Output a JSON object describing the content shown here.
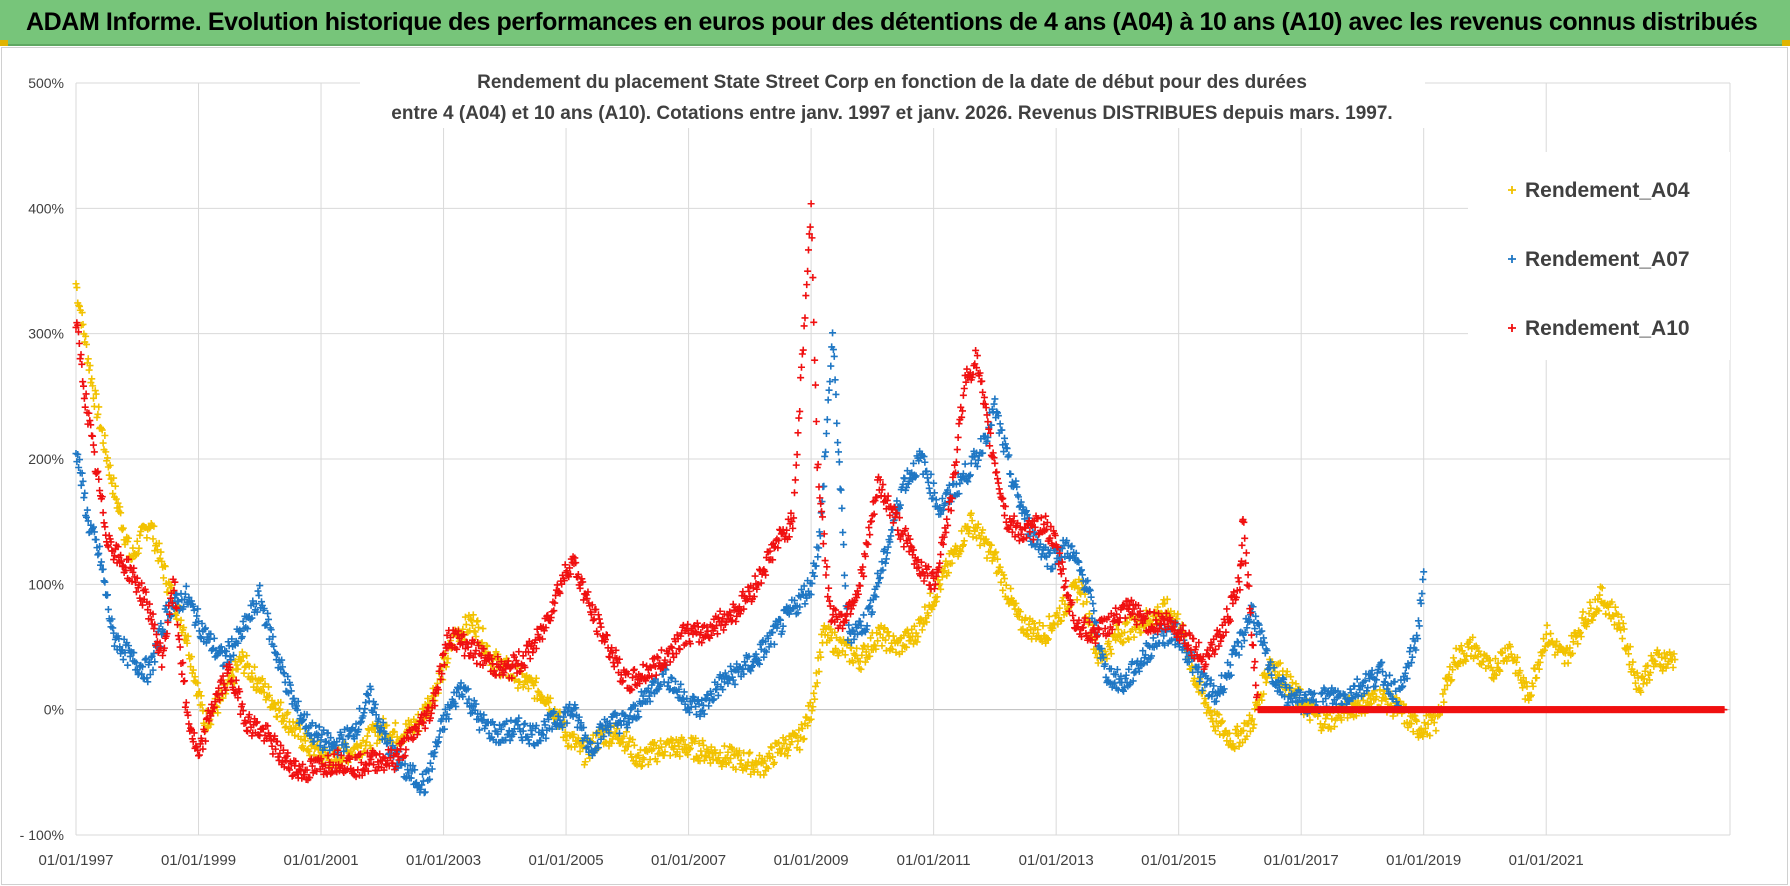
{
  "header": {
    "title": "ADAM Informe. Evolution historique des performances en euros pour des détentions de 4 ans (A04) à 10 ans (A10) avec les revenus connus distribués"
  },
  "colors": {
    "A04": "#f2c200",
    "A07": "#1f77c4",
    "A10": "#f01010",
    "banner": "#77c57a",
    "grid": "#d9d9d9"
  },
  "chart_data": {
    "type": "scatter",
    "title_line1": "Rendement du placement State Street Corp en fonction de la date de début pour des durées",
    "title_line2": "entre 4 (A04) et 10 ans (A10).  Cotations entre janv. 1997 et janv. 2026.  Revenus DISTRIBUES depuis mars. 1997.",
    "xlabel": "",
    "ylabel": "",
    "x_range": [
      1997.0,
      2024.0
    ],
    "ylim": [
      -100,
      500
    ],
    "y_ticks": [
      "- 100%",
      "0%",
      "100%",
      "200%",
      "300%",
      "400%",
      "500%"
    ],
    "y_tick_values": [
      -100,
      0,
      100,
      200,
      300,
      400,
      500
    ],
    "x_ticks": [
      "01/01/1997",
      "01/01/1999",
      "01/01/2001",
      "01/01/2003",
      "01/01/2005",
      "01/01/2007",
      "01/01/2009",
      "01/01/2011",
      "01/01/2013",
      "01/01/2015",
      "01/01/2017",
      "01/01/2019",
      "01/01/2021"
    ],
    "x_tick_values": [
      1997,
      1999,
      2001,
      2003,
      2005,
      2007,
      2009,
      2011,
      2013,
      2015,
      2017,
      2019,
      2021
    ],
    "legend": [
      "Rendement_A04",
      "Rendement_A07",
      "Rendement_A10"
    ],
    "legend_position": "top-right",
    "marker": "+",
    "series": [
      {
        "name": "Rendement_A04",
        "x": [
          1997.0,
          1997.3,
          1997.6,
          1997.9,
          1998.2,
          1998.5,
          1998.8,
          1999.1,
          1999.4,
          1999.7,
          2000.0,
          2000.4,
          2000.8,
          2001.2,
          2001.6,
          2002.0,
          2002.3,
          2002.6,
          2002.9,
          2003.2,
          2003.5,
          2003.8,
          2004.1,
          2004.4,
          2004.7,
          2005.0,
          2005.3,
          2005.6,
          2005.9,
          2006.2,
          2006.6,
          2007.0,
          2007.4,
          2007.8,
          2008.2,
          2008.5,
          2008.8,
          2009.0,
          2009.2,
          2009.5,
          2009.8,
          2010.1,
          2010.4,
          2010.7,
          2011.0,
          2011.3,
          2011.6,
          2012.0,
          2012.4,
          2012.8,
          2013.1,
          2013.4,
          2013.7,
          2014.0,
          2014.4,
          2014.8,
          2015.0,
          2015.3,
          2015.6,
          2015.9,
          2016.2,
          2016.5,
          2016.8,
          2017.1,
          2017.4,
          2017.7,
          2018.0,
          2018.3,
          2018.6,
          2018.9,
          2019.2,
          2019.5,
          2019.8,
          2020.1,
          2020.4,
          2020.7,
          2021.0,
          2021.3,
          2021.6,
          2021.9,
          2022.2,
          2022.5,
          2022.8,
          2023.1
        ],
        "y": [
          340,
          250,
          180,
          120,
          150,
          100,
          60,
          -10,
          10,
          40,
          20,
          -5,
          -30,
          -40,
          -30,
          -15,
          -20,
          -10,
          20,
          60,
          70,
          40,
          30,
          20,
          10,
          -20,
          -35,
          -20,
          -20,
          -40,
          -30,
          -30,
          -35,
          -40,
          -45,
          -30,
          -25,
          0,
          60,
          50,
          40,
          60,
          50,
          60,
          90,
          120,
          150,
          120,
          70,
          60,
          80,
          100,
          40,
          60,
          70,
          80,
          70,
          20,
          -10,
          -25,
          -10,
          40,
          20,
          0,
          -10,
          0,
          5,
          10,
          0,
          -15,
          -10,
          40,
          50,
          30,
          50,
          10,
          60,
          40,
          70,
          90,
          70,
          20,
          40,
          40
        ]
      },
      {
        "name": "Rendement_A07",
        "x": [
          1997.0,
          1997.2,
          1997.4,
          1997.6,
          1997.9,
          1998.2,
          1998.5,
          1998.8,
          1999.1,
          1999.4,
          1999.7,
          2000.0,
          2000.3,
          2000.6,
          2000.9,
          2001.2,
          2001.5,
          2001.8,
          2002.1,
          2002.4,
          2002.7,
          2003.0,
          2003.3,
          2003.6,
          2003.9,
          2004.2,
          2004.5,
          2004.8,
          2005.1,
          2005.4,
          2005.7,
          2006.0,
          2006.3,
          2006.6,
          2006.9,
          2007.2,
          2007.5,
          2007.8,
          2008.1,
          2008.4,
          2008.7,
          2009.0,
          2009.15,
          2009.35,
          2009.6,
          2009.9,
          2010.2,
          2010.5,
          2010.8,
          2011.1,
          2011.4,
          2011.7,
          2012.0,
          2012.3,
          2012.6,
          2012.9,
          2013.2,
          2013.5,
          2013.8,
          2014.1,
          2014.4,
          2014.7,
          2015.0,
          2015.3,
          2015.6,
          2015.9,
          2016.2,
          2016.5,
          2016.8,
          2017.1,
          2017.4,
          2017.7,
          2018.0,
          2018.3,
          2018.6,
          2018.9,
          2019.0
        ],
        "y": [
          210,
          150,
          120,
          60,
          40,
          30,
          80,
          90,
          60,
          40,
          60,
          90,
          40,
          0,
          -20,
          -30,
          -20,
          10,
          -30,
          -50,
          -60,
          -10,
          20,
          -10,
          -20,
          -15,
          -20,
          -10,
          0,
          -30,
          -10,
          -10,
          10,
          30,
          10,
          0,
          20,
          30,
          40,
          60,
          80,
          100,
          140,
          300,
          60,
          70,
          120,
          180,
          200,
          160,
          180,
          200,
          240,
          180,
          140,
          120,
          130,
          100,
          30,
          20,
          40,
          60,
          60,
          30,
          10,
          40,
          80,
          30,
          10,
          5,
          10,
          10,
          20,
          30,
          10,
          60,
          110
        ]
      },
      {
        "name": "Rendement_A10",
        "x": [
          1997.0,
          1997.15,
          1997.3,
          1997.5,
          1997.7,
          1997.9,
          1998.2,
          1998.4,
          1998.6,
          1998.8,
          1999.0,
          1999.2,
          1999.5,
          1999.8,
          2000.1,
          2000.4,
          2000.7,
          2001.0,
          2001.3,
          2001.6,
          2001.9,
          2002.2,
          2002.5,
          2002.8,
          2003.1,
          2003.4,
          2003.7,
          2004.0,
          2004.3,
          2004.6,
          2004.9,
          2005.1,
          2005.4,
          2005.7,
          2006.0,
          2006.3,
          2006.6,
          2006.9,
          2007.2,
          2007.5,
          2007.8,
          2008.1,
          2008.4,
          2008.7,
          2009.0,
          2009.1,
          2009.3,
          2009.5,
          2009.8,
          2010.1,
          2010.4,
          2010.7,
          2011.0,
          2011.3,
          2011.5,
          2011.7,
          2011.9,
          2012.2,
          2012.5,
          2012.8,
          2013.0,
          2013.3,
          2013.6,
          2013.9,
          2014.2,
          2014.5,
          2014.8,
          2015.1,
          2015.4,
          2015.7,
          2016.0,
          2016.05,
          2016.3,
          2016.6,
          2016.9,
          2017.2,
          2017.5,
          2017.8,
          2018.1,
          2018.4,
          2018.7,
          2019.0,
          2019.3,
          2019.6,
          2019.9,
          2020.2,
          2020.5,
          2020.8,
          2021.1,
          2021.4,
          2021.7,
          2022.0,
          2022.3,
          2022.6,
          2022.9,
          2023.2,
          2023.5,
          2023.9
        ],
        "y": [
          310,
          250,
          200,
          140,
          120,
          110,
          80,
          40,
          100,
          0,
          -40,
          0,
          30,
          -10,
          -20,
          -40,
          -50,
          -45,
          -40,
          -45,
          -40,
          -40,
          -20,
          0,
          60,
          50,
          40,
          30,
          40,
          60,
          100,
          120,
          80,
          50,
          20,
          30,
          40,
          60,
          60,
          70,
          80,
          100,
          130,
          150,
          400,
          200,
          80,
          70,
          100,
          180,
          150,
          120,
          100,
          170,
          260,
          280,
          220,
          150,
          140,
          150,
          130,
          70,
          60,
          70,
          80,
          70,
          70,
          60,
          40,
          60,
          100,
          150,
          0,
          0,
          0,
          0,
          0,
          0,
          0,
          0,
          0,
          0,
          0,
          0,
          0,
          0,
          0,
          0,
          0,
          0,
          0,
          0,
          0,
          0,
          0,
          0,
          0,
          0
        ]
      }
    ]
  }
}
